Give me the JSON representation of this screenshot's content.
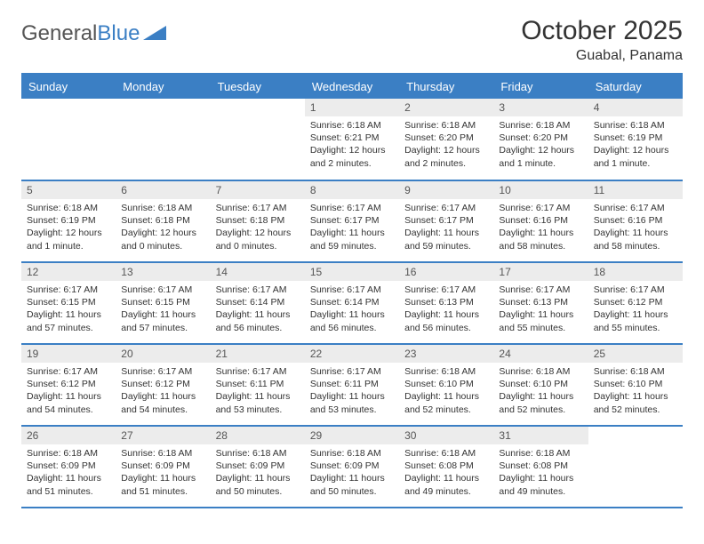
{
  "logo": {
    "word1": "General",
    "word2": "Blue"
  },
  "header": {
    "title": "October 2025",
    "location": "Guabal, Panama"
  },
  "colors": {
    "header_bg": "#3b7fc4",
    "header_text": "#ffffff",
    "daynum_bg": "#ececec",
    "border": "#3b7fc4",
    "text": "#333333",
    "background": "#ffffff"
  },
  "typography": {
    "title_fontsize": 30,
    "location_fontsize": 16,
    "weekday_fontsize": 13,
    "daynum_fontsize": 12,
    "cell_fontsize": 10.5
  },
  "weekdays": [
    "Sunday",
    "Monday",
    "Tuesday",
    "Wednesday",
    "Thursday",
    "Friday",
    "Saturday"
  ],
  "weeks": [
    [
      {
        "empty": true
      },
      {
        "empty": true
      },
      {
        "empty": true
      },
      {
        "day": "1",
        "sunrise": "Sunrise: 6:18 AM",
        "sunset": "Sunset: 6:21 PM",
        "daylight": "Daylight: 12 hours and 2 minutes."
      },
      {
        "day": "2",
        "sunrise": "Sunrise: 6:18 AM",
        "sunset": "Sunset: 6:20 PM",
        "daylight": "Daylight: 12 hours and 2 minutes."
      },
      {
        "day": "3",
        "sunrise": "Sunrise: 6:18 AM",
        "sunset": "Sunset: 6:20 PM",
        "daylight": "Daylight: 12 hours and 1 minute."
      },
      {
        "day": "4",
        "sunrise": "Sunrise: 6:18 AM",
        "sunset": "Sunset: 6:19 PM",
        "daylight": "Daylight: 12 hours and 1 minute."
      }
    ],
    [
      {
        "day": "5",
        "sunrise": "Sunrise: 6:18 AM",
        "sunset": "Sunset: 6:19 PM",
        "daylight": "Daylight: 12 hours and 1 minute."
      },
      {
        "day": "6",
        "sunrise": "Sunrise: 6:18 AM",
        "sunset": "Sunset: 6:18 PM",
        "daylight": "Daylight: 12 hours and 0 minutes."
      },
      {
        "day": "7",
        "sunrise": "Sunrise: 6:17 AM",
        "sunset": "Sunset: 6:18 PM",
        "daylight": "Daylight: 12 hours and 0 minutes."
      },
      {
        "day": "8",
        "sunrise": "Sunrise: 6:17 AM",
        "sunset": "Sunset: 6:17 PM",
        "daylight": "Daylight: 11 hours and 59 minutes."
      },
      {
        "day": "9",
        "sunrise": "Sunrise: 6:17 AM",
        "sunset": "Sunset: 6:17 PM",
        "daylight": "Daylight: 11 hours and 59 minutes."
      },
      {
        "day": "10",
        "sunrise": "Sunrise: 6:17 AM",
        "sunset": "Sunset: 6:16 PM",
        "daylight": "Daylight: 11 hours and 58 minutes."
      },
      {
        "day": "11",
        "sunrise": "Sunrise: 6:17 AM",
        "sunset": "Sunset: 6:16 PM",
        "daylight": "Daylight: 11 hours and 58 minutes."
      }
    ],
    [
      {
        "day": "12",
        "sunrise": "Sunrise: 6:17 AM",
        "sunset": "Sunset: 6:15 PM",
        "daylight": "Daylight: 11 hours and 57 minutes."
      },
      {
        "day": "13",
        "sunrise": "Sunrise: 6:17 AM",
        "sunset": "Sunset: 6:15 PM",
        "daylight": "Daylight: 11 hours and 57 minutes."
      },
      {
        "day": "14",
        "sunrise": "Sunrise: 6:17 AM",
        "sunset": "Sunset: 6:14 PM",
        "daylight": "Daylight: 11 hours and 56 minutes."
      },
      {
        "day": "15",
        "sunrise": "Sunrise: 6:17 AM",
        "sunset": "Sunset: 6:14 PM",
        "daylight": "Daylight: 11 hours and 56 minutes."
      },
      {
        "day": "16",
        "sunrise": "Sunrise: 6:17 AM",
        "sunset": "Sunset: 6:13 PM",
        "daylight": "Daylight: 11 hours and 56 minutes."
      },
      {
        "day": "17",
        "sunrise": "Sunrise: 6:17 AM",
        "sunset": "Sunset: 6:13 PM",
        "daylight": "Daylight: 11 hours and 55 minutes."
      },
      {
        "day": "18",
        "sunrise": "Sunrise: 6:17 AM",
        "sunset": "Sunset: 6:12 PM",
        "daylight": "Daylight: 11 hours and 55 minutes."
      }
    ],
    [
      {
        "day": "19",
        "sunrise": "Sunrise: 6:17 AM",
        "sunset": "Sunset: 6:12 PM",
        "daylight": "Daylight: 11 hours and 54 minutes."
      },
      {
        "day": "20",
        "sunrise": "Sunrise: 6:17 AM",
        "sunset": "Sunset: 6:12 PM",
        "daylight": "Daylight: 11 hours and 54 minutes."
      },
      {
        "day": "21",
        "sunrise": "Sunrise: 6:17 AM",
        "sunset": "Sunset: 6:11 PM",
        "daylight": "Daylight: 11 hours and 53 minutes."
      },
      {
        "day": "22",
        "sunrise": "Sunrise: 6:17 AM",
        "sunset": "Sunset: 6:11 PM",
        "daylight": "Daylight: 11 hours and 53 minutes."
      },
      {
        "day": "23",
        "sunrise": "Sunrise: 6:18 AM",
        "sunset": "Sunset: 6:10 PM",
        "daylight": "Daylight: 11 hours and 52 minutes."
      },
      {
        "day": "24",
        "sunrise": "Sunrise: 6:18 AM",
        "sunset": "Sunset: 6:10 PM",
        "daylight": "Daylight: 11 hours and 52 minutes."
      },
      {
        "day": "25",
        "sunrise": "Sunrise: 6:18 AM",
        "sunset": "Sunset: 6:10 PM",
        "daylight": "Daylight: 11 hours and 52 minutes."
      }
    ],
    [
      {
        "day": "26",
        "sunrise": "Sunrise: 6:18 AM",
        "sunset": "Sunset: 6:09 PM",
        "daylight": "Daylight: 11 hours and 51 minutes."
      },
      {
        "day": "27",
        "sunrise": "Sunrise: 6:18 AM",
        "sunset": "Sunset: 6:09 PM",
        "daylight": "Daylight: 11 hours and 51 minutes."
      },
      {
        "day": "28",
        "sunrise": "Sunrise: 6:18 AM",
        "sunset": "Sunset: 6:09 PM",
        "daylight": "Daylight: 11 hours and 50 minutes."
      },
      {
        "day": "29",
        "sunrise": "Sunrise: 6:18 AM",
        "sunset": "Sunset: 6:09 PM",
        "daylight": "Daylight: 11 hours and 50 minutes."
      },
      {
        "day": "30",
        "sunrise": "Sunrise: 6:18 AM",
        "sunset": "Sunset: 6:08 PM",
        "daylight": "Daylight: 11 hours and 49 minutes."
      },
      {
        "day": "31",
        "sunrise": "Sunrise: 6:18 AM",
        "sunset": "Sunset: 6:08 PM",
        "daylight": "Daylight: 11 hours and 49 minutes."
      },
      {
        "empty": true
      }
    ]
  ]
}
